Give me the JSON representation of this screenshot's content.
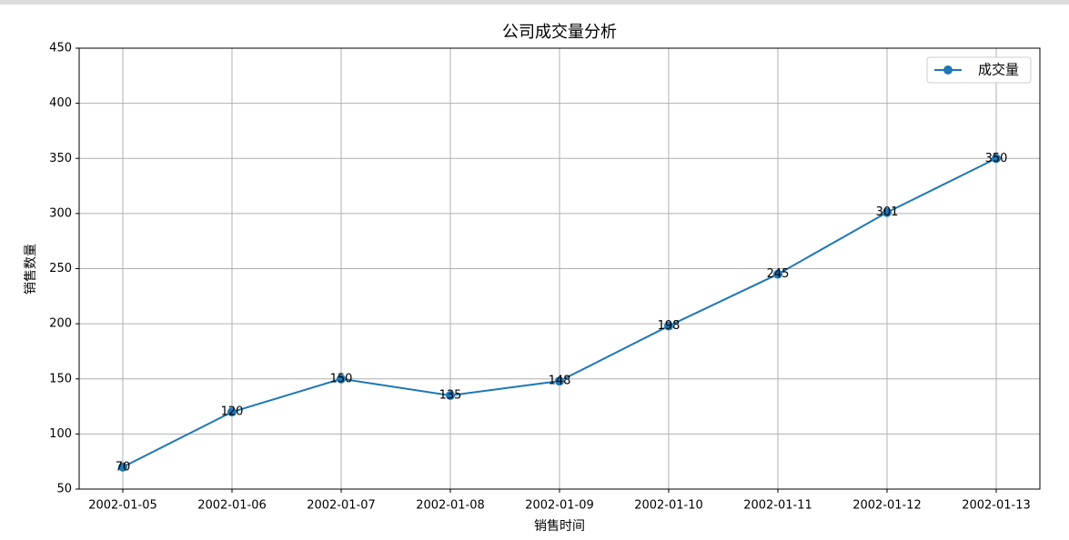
{
  "chart_data": {
    "type": "line",
    "title": "公司成交量分析",
    "xlabel": "销售时间",
    "ylabel": "销售数量",
    "categories": [
      "2002-01-05",
      "2002-01-06",
      "2002-01-07",
      "2002-01-08",
      "2002-01-09",
      "2002-01-10",
      "2002-01-11",
      "2002-01-12",
      "2002-01-13"
    ],
    "series": [
      {
        "name": "成交量",
        "color": "#1f77b4",
        "values": [
          70,
          120,
          150,
          135,
          148,
          198,
          245,
          301,
          350
        ]
      }
    ],
    "ylim": [
      50,
      450
    ],
    "yticks": [
      50,
      100,
      150,
      200,
      250,
      300,
      350,
      400,
      450
    ],
    "grid": true,
    "legend": "upper right"
  }
}
